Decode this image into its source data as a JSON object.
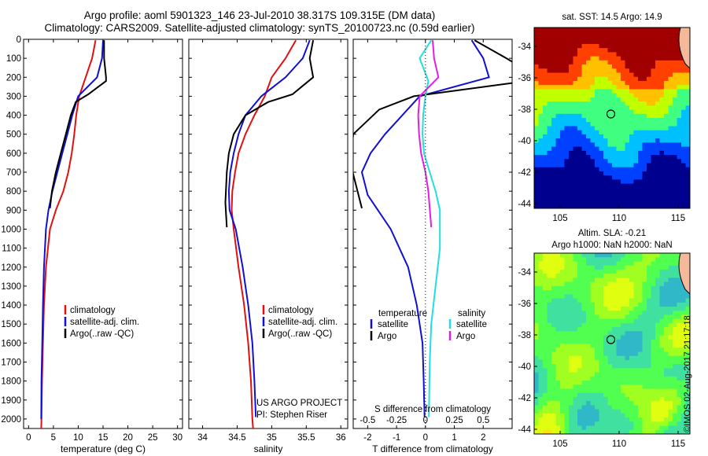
{
  "title_line1": "Argo profile: aoml 5901323_146 23-Jul-2010 38.317S 109.315E (DM data)",
  "title_line2": "Climatology: CARS2009. Satellite-adjusted climatology: synTS_20100723.nc (0.59d earlier)",
  "side_text": "©IMOS 02-Aug-2017 21:17:18",
  "colors": {
    "climatology": "#e01010",
    "satellite": "#1010d0",
    "argo": "#000000",
    "sat_salinity": "#22dede",
    "argo_salinity": "#e020e0"
  },
  "chart_data": [
    {
      "type": "line",
      "xlabel": "temperature (deg C)",
      "ylabel": "",
      "xlim": [
        -1,
        31
      ],
      "ylim": [
        2050,
        0
      ],
      "xticks": [
        0,
        5,
        10,
        15,
        20,
        25,
        30
      ],
      "yticks": [
        0,
        100,
        200,
        300,
        400,
        500,
        600,
        700,
        800,
        900,
        1000,
        1100,
        1200,
        1300,
        1400,
        1500,
        1600,
        1700,
        1800,
        1900,
        2000
      ],
      "legend": [
        "climatology",
        "satellite-adj. clim.",
        "Argo(..raw -QC)"
      ],
      "series": [
        {
          "name": "climatology",
          "color": "#e01010",
          "x": [
            13.5,
            12.8,
            11.5,
            10.2,
            9.6,
            9.2,
            8.7,
            8.0,
            7.0,
            5.5,
            4.3,
            3.5,
            3.1,
            2.9,
            2.7,
            2.6,
            2.55
          ],
          "y": [
            5,
            100,
            200,
            300,
            400,
            500,
            600,
            700,
            800,
            900,
            1000,
            1200,
            1400,
            1600,
            1800,
            2000,
            2050
          ]
        },
        {
          "name": "satellite-adj. clim.",
          "color": "#1010d0",
          "x": [
            15.0,
            14.8,
            13.8,
            10.0,
            8.8,
            7.8,
            6.8,
            5.8,
            4.8,
            4.0,
            3.5,
            3.1,
            2.9,
            2.75,
            2.6,
            2.55
          ],
          "y": [
            5,
            100,
            200,
            300,
            400,
            500,
            600,
            700,
            800,
            900,
            1000,
            1200,
            1400,
            1600,
            1800,
            2000
          ]
        },
        {
          "name": "Argo(..raw -QC)",
          "color": "#000000",
          "x": [
            15.2,
            15.2,
            15.6,
            15.6,
            12.0,
            9.5,
            8.5,
            7.5,
            6.5,
            5.5,
            4.7,
            4.3
          ],
          "y": [
            5,
            100,
            200,
            220,
            290,
            330,
            400,
            500,
            600,
            700,
            800,
            890
          ]
        }
      ]
    },
    {
      "type": "line",
      "xlabel": "salinity",
      "ylabel": "",
      "xlim": [
        33.8,
        36.1
      ],
      "ylim": [
        2050,
        0
      ],
      "xticks": [
        34,
        34.5,
        35,
        35.5,
        36
      ],
      "legend": [
        "climatology",
        "satellite-adj. clim.",
        "Argo(..raw -QC)"
      ],
      "annotations": [
        "US ARGO PROJECT",
        "PI: Stephen Riser"
      ],
      "series": [
        {
          "name": "climatology",
          "color": "#e01010",
          "x": [
            35.35,
            35.2,
            35.0,
            34.9,
            34.75,
            34.62,
            34.52,
            34.47,
            34.43,
            34.42,
            34.45,
            34.52,
            34.6,
            34.66,
            34.7,
            34.72,
            34.73
          ],
          "y": [
            5,
            100,
            200,
            300,
            400,
            500,
            600,
            700,
            800,
            900,
            1000,
            1200,
            1400,
            1600,
            1800,
            2000,
            2050
          ]
        },
        {
          "name": "satellite-adj. clim.",
          "color": "#1010d0",
          "x": [
            35.55,
            35.45,
            35.2,
            34.85,
            34.62,
            34.52,
            34.45,
            34.4,
            34.38,
            34.39,
            34.48,
            34.58,
            34.66,
            34.72,
            34.75,
            34.77
          ],
          "y": [
            5,
            100,
            200,
            300,
            400,
            500,
            600,
            700,
            800,
            900,
            1000,
            1200,
            1400,
            1600,
            1800,
            1990
          ]
        },
        {
          "name": "Argo(..raw -QC)",
          "color": "#000000",
          "x": [
            35.6,
            35.55,
            35.6,
            35.3,
            34.95,
            34.62,
            34.45,
            34.38,
            34.35,
            34.33,
            34.35
          ],
          "y": [
            5,
            100,
            200,
            290,
            330,
            400,
            500,
            600,
            700,
            860,
            990
          ]
        }
      ]
    },
    {
      "type": "line",
      "xlabel": "T difference from climatology",
      "xlabel_top": "S difference from climatology",
      "ylabel": "",
      "xlim": [
        -2.5,
        3.0
      ],
      "ylim": [
        2050,
        0
      ],
      "xticks": [
        -2,
        -1,
        0,
        1,
        2
      ],
      "xticks_top_values": [
        -0.5,
        -0.25,
        0,
        0.25,
        0.5
      ],
      "legend_title_left": "temperature",
      "legend_title_right": "salinity",
      "legend": [
        "satellite",
        "Argo",
        "satellite",
        "Argo"
      ],
      "series": [
        {
          "name": "temperature satellite",
          "color": "#1010d0",
          "x": [
            1.6,
            2.0,
            2.2,
            -0.2,
            -0.8,
            -1.4,
            -1.9,
            -2.2,
            -2.0,
            -1.2,
            -0.6,
            -0.3,
            -0.1,
            -0.06,
            -0.03
          ],
          "y": [
            5,
            100,
            200,
            300,
            400,
            500,
            600,
            700,
            820,
            1000,
            1200,
            1400,
            1600,
            1800,
            1990
          ]
        },
        {
          "name": "temperature Argo",
          "color": "#000000",
          "x": [
            1.7,
            2.8,
            4.0,
            -0.4,
            -1.6,
            -2.5,
            -2.6,
            -2.2
          ],
          "y": [
            5,
            100,
            210,
            300,
            370,
            500,
            650,
            890
          ]
        },
        {
          "name": "salinity satellite",
          "color": "#22dede",
          "x": [
            0.2,
            -0.2,
            0.1,
            0.0,
            -0.08,
            -0.1,
            -0.05,
            0.15,
            0.35,
            0.5,
            0.5,
            0.35,
            0.2,
            0.15,
            0.12
          ],
          "y": [
            5,
            100,
            220,
            300,
            400,
            500,
            600,
            700,
            800,
            900,
            1100,
            1300,
            1500,
            1700,
            1990
          ]
        },
        {
          "name": "salinity Argo",
          "color": "#e020e0",
          "x": [
            0.25,
            0.3,
            0.45,
            -0.2,
            -0.25,
            -0.22,
            -0.15,
            0.0,
            0.1,
            0.2
          ],
          "y": [
            5,
            100,
            200,
            300,
            400,
            500,
            600,
            700,
            800,
            990
          ]
        }
      ]
    },
    {
      "type": "heatmap",
      "title": "sat. SST: 14.5 Argo: 14.9",
      "xlim": [
        102.8,
        116.0
      ],
      "ylim": [
        -44.3,
        -32.8
      ],
      "xticks": [
        105,
        110,
        115
      ],
      "yticks": [
        -34,
        -36,
        -38,
        -40,
        -42,
        -44
      ],
      "marker": {
        "lon": 109.3,
        "lat": -38.3
      },
      "colors": [
        "#00008f",
        "#0040ff",
        "#00c0ff",
        "#40ff80",
        "#c0ff00",
        "#ffc000",
        "#ff4000",
        "#a00000"
      ]
    },
    {
      "type": "heatmap",
      "title": "Altim. SLA: -0.21",
      "subtitle": "Argo h1000: NaN h2000: NaN",
      "xlim": [
        102.8,
        116.0
      ],
      "ylim": [
        -44.3,
        -32.8
      ],
      "xticks": [
        105,
        110,
        115
      ],
      "yticks": [
        -34,
        -36,
        -38,
        -40,
        -42,
        -44
      ],
      "marker": {
        "lon": 109.3,
        "lat": -38.3
      },
      "colors": [
        "#30b8c8",
        "#40e0a0",
        "#50ff50",
        "#a0ff20",
        "#e0ff10",
        "#ffe010"
      ]
    }
  ]
}
